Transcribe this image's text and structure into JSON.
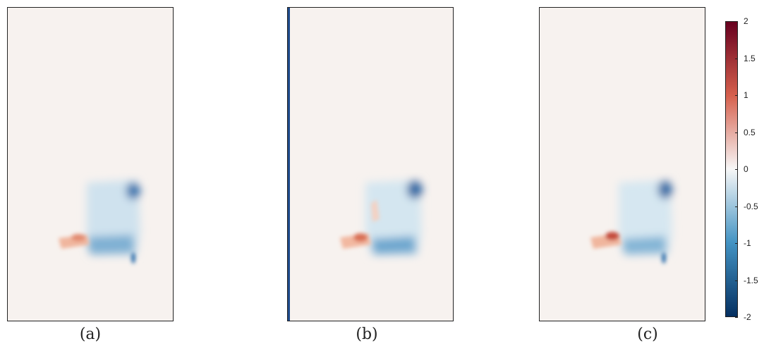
{
  "chart_data": [
    {
      "type": "heatmap",
      "panel": "(a)",
      "caption": "(a)",
      "colormap": "diverging red-white-blue",
      "clim": [
        -2,
        2
      ],
      "background_value": 0,
      "features": [
        {
          "region": "upper-right blob",
          "peak_value": -1.8
        },
        {
          "region": "lower horizontal band",
          "peak_value": -1.2
        },
        {
          "region": "left tongue",
          "peak_value": 1.2
        }
      ]
    },
    {
      "type": "heatmap",
      "panel": "(b)",
      "caption": "(b)",
      "colormap": "diverging red-white-blue",
      "clim": [
        -2,
        2
      ],
      "background_value": 0,
      "left_edge_value": -2,
      "features": [
        {
          "region": "upper-right blob",
          "peak_value": -1.8
        },
        {
          "region": "lower horizontal band",
          "peak_value": -1.2
        },
        {
          "region": "left tongue",
          "peak_value": 1.6
        }
      ]
    },
    {
      "type": "heatmap",
      "panel": "(c)",
      "caption": "(c)",
      "colormap": "diverging red-white-blue",
      "clim": [
        -2,
        2
      ],
      "background_value": 0,
      "features": [
        {
          "region": "upper-right blob",
          "peak_value": -1.8
        },
        {
          "region": "lower horizontal band",
          "peak_value": -1.1
        },
        {
          "region": "left tongue",
          "peak_value": 1.7
        }
      ]
    }
  ],
  "colorbar": {
    "min": -2,
    "max": 2,
    "ticks": [
      "2",
      "1.5",
      "1",
      "0.5",
      "0",
      "-0.5",
      "-1",
      "-1.5",
      "-2"
    ],
    "colors": {
      "high": "#67001f",
      "mid_high": "#d6604d",
      "mid": "#f7f7f7",
      "mid_low": "#4393c3",
      "low": "#053061"
    }
  }
}
